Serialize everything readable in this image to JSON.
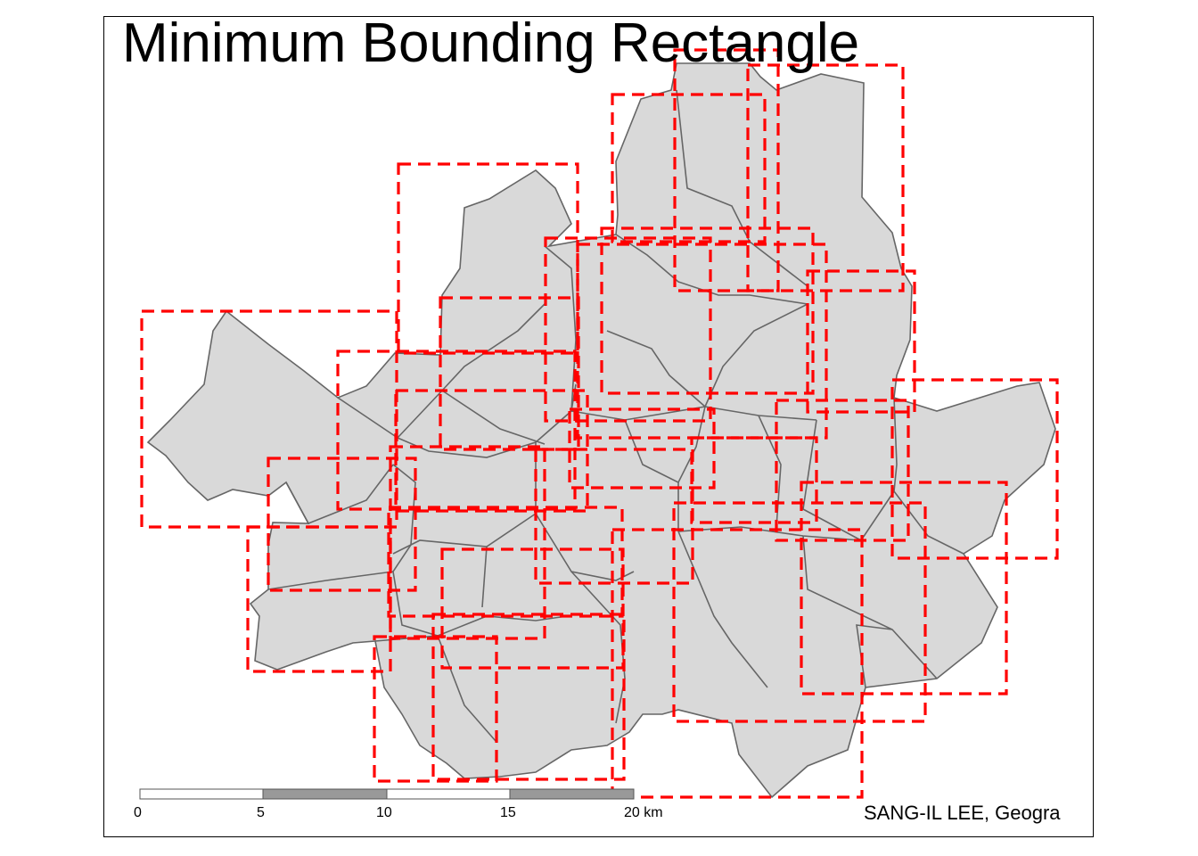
{
  "title": "Minimum Bounding Rectangle",
  "credit": "SANG-IL LEE, Geogra",
  "scale_bar": {
    "ticks": [
      "0",
      "5",
      "10",
      "15",
      "20 km"
    ],
    "segment_colors": [
      "#ffffff",
      "#999999",
      "#ffffff",
      "#999999",
      "#ffffff"
    ]
  },
  "colors": {
    "district_fill": "#d9d9d9",
    "district_border": "#666666",
    "mbr_stroke": "#ff0000"
  }
}
